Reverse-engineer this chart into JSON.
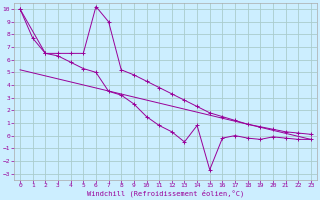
{
  "xlabel": "Windchill (Refroidissement éolien,°C)",
  "bg_color": "#cceeff",
  "grid_color": "#aacccc",
  "line_color": "#990099",
  "spine_color": "#aaaaaa",
  "xlim": [
    -0.5,
    23.5
  ],
  "ylim": [
    -3.5,
    10.5
  ],
  "xticks": [
    0,
    1,
    2,
    3,
    4,
    5,
    6,
    7,
    8,
    9,
    10,
    11,
    12,
    13,
    14,
    15,
    16,
    17,
    18,
    19,
    20,
    21,
    22,
    23
  ],
  "yticks": [
    -3,
    -2,
    -1,
    0,
    1,
    2,
    3,
    4,
    5,
    6,
    7,
    8,
    9,
    10
  ],
  "series1_x": [
    0,
    1,
    2,
    3,
    4,
    5,
    6,
    7,
    8,
    9,
    10,
    11,
    12,
    13,
    14,
    15,
    16,
    17,
    18,
    19,
    20,
    21,
    22,
    23
  ],
  "series1_y": [
    10,
    7.7,
    6.5,
    6.5,
    6.5,
    6.5,
    10.2,
    9.0,
    5.2,
    4.8,
    4.3,
    3.8,
    3.3,
    2.8,
    2.3,
    1.8,
    1.5,
    1.2,
    0.9,
    0.7,
    0.5,
    0.3,
    0.2,
    0.1
  ],
  "series2_x": [
    0,
    2,
    3,
    4,
    5,
    6,
    7,
    8,
    9,
    10,
    11,
    12,
    13,
    14,
    15,
    16,
    17,
    18,
    19,
    20,
    21,
    22,
    23
  ],
  "series2_y": [
    10,
    6.5,
    6.3,
    5.8,
    5.3,
    5.0,
    3.5,
    3.2,
    2.5,
    1.5,
    0.8,
    0.3,
    -0.5,
    0.8,
    -2.7,
    -0.2,
    0.0,
    -0.2,
    -0.3,
    -0.1,
    -0.2,
    -0.3,
    -0.3
  ],
  "series3_x": [
    0,
    23
  ],
  "series3_y": [
    5.2,
    -0.3
  ]
}
